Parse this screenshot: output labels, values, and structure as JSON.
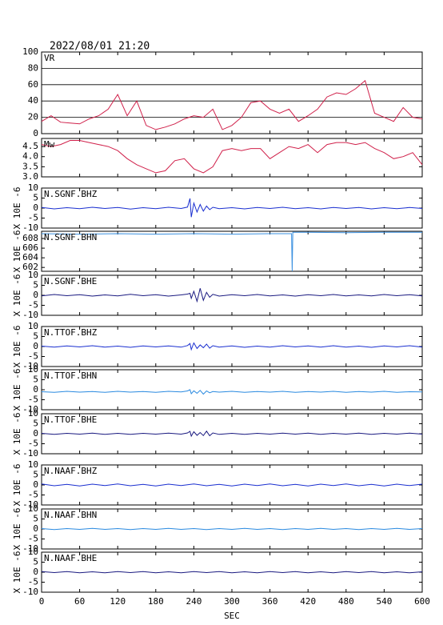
{
  "chart_data": [
    {
      "type": "line",
      "title": "2022/08/01 21:20",
      "panel_label": "VR",
      "color": "#d0204a",
      "grid": true,
      "ylim": [
        0,
        100
      ],
      "yticks": [
        0,
        20,
        40,
        60,
        80,
        100
      ],
      "x": [
        0,
        15,
        30,
        45,
        60,
        75,
        90,
        105,
        120,
        135,
        150,
        165,
        180,
        195,
        210,
        225,
        240,
        255,
        270,
        285,
        300,
        315,
        330,
        345,
        360,
        375,
        390,
        405,
        420,
        435,
        450,
        465,
        480,
        495,
        510,
        525,
        540,
        555,
        570,
        585,
        600
      ],
      "values": [
        15,
        22,
        14,
        13,
        12,
        18,
        22,
        30,
        48,
        22,
        40,
        10,
        5,
        8,
        12,
        18,
        22,
        20,
        30,
        5,
        10,
        20,
        38,
        40,
        30,
        25,
        30,
        15,
        22,
        30,
        45,
        50,
        48,
        55,
        65,
        25,
        20,
        15,
        32,
        20,
        18
      ]
    },
    {
      "type": "line",
      "panel_label": "Mw",
      "color": "#d0204a",
      "ylim": [
        3.0,
        4.9
      ],
      "yticks": [
        {
          "value": 3,
          "label": "3.0"
        },
        3.5,
        {
          "value": 4,
          "label": "4.0"
        },
        4.5
      ],
      "x": [
        0,
        15,
        30,
        45,
        60,
        75,
        90,
        105,
        120,
        135,
        150,
        165,
        180,
        195,
        210,
        225,
        240,
        255,
        270,
        285,
        300,
        315,
        330,
        345,
        360,
        375,
        390,
        405,
        420,
        435,
        450,
        465,
        480,
        495,
        510,
        525,
        540,
        555,
        570,
        585,
        600
      ],
      "values": [
        4.6,
        4.5,
        4.6,
        4.8,
        4.8,
        4.7,
        4.6,
        4.5,
        4.3,
        3.9,
        3.6,
        3.4,
        3.2,
        3.3,
        3.8,
        3.9,
        3.4,
        3.2,
        3.5,
        4.3,
        4.4,
        4.3,
        4.4,
        4.4,
        3.9,
        4.2,
        4.5,
        4.4,
        4.6,
        4.2,
        4.6,
        4.7,
        4.7,
        4.6,
        4.7,
        4.4,
        4.2,
        3.9,
        4.0,
        4.2,
        3.6
      ]
    },
    {
      "type": "line",
      "panel_label": "N.SGNF.BHZ",
      "ylabel": "X 10E -6",
      "color": "#1a2fd0",
      "ylim": [
        -10,
        10
      ],
      "yticks": [
        -10,
        -5,
        0,
        5,
        10
      ],
      "x": [
        0,
        20,
        40,
        60,
        80,
        100,
        120,
        140,
        160,
        180,
        200,
        220,
        230,
        234,
        236,
        240,
        245,
        250,
        255,
        260,
        265,
        270,
        280,
        300,
        320,
        340,
        360,
        380,
        400,
        420,
        440,
        460,
        480,
        500,
        520,
        540,
        560,
        580,
        600
      ],
      "values": [
        0.3,
        -0.4,
        0.2,
        -0.3,
        0.4,
        -0.2,
        0.3,
        -0.5,
        0.2,
        -0.3,
        0.4,
        -0.2,
        0.5,
        4.8,
        -4.5,
        2.5,
        -2,
        1.8,
        -1.5,
        1,
        -0.8,
        0.4,
        -0.3,
        0.2,
        -0.4,
        0.3,
        -0.2,
        0.4,
        -0.3,
        0.2,
        -0.4,
        0.3,
        -0.2,
        0.3,
        -0.4,
        0.2,
        -0.3,
        0.3,
        -0.2
      ]
    },
    {
      "type": "line",
      "panel_label": "N.SGNF.BHN",
      "ylabel": "X 10E -6",
      "color": "#3a90e0",
      "ylim": [
        601.2,
        609.5
      ],
      "yticks": [
        602,
        604,
        606,
        608
      ],
      "x": [
        0,
        60,
        120,
        180,
        240,
        300,
        360,
        394,
        395,
        396,
        420,
        480,
        540,
        600
      ],
      "values": [
        609.0,
        608.9,
        609.0,
        608.9,
        609.0,
        608.9,
        609.0,
        609.0,
        601.2,
        609.3,
        609.3,
        609.2,
        609.3,
        609.3
      ]
    },
    {
      "type": "line",
      "panel_label": "N.SGNF.BHE",
      "ylabel": "X 10E -6",
      "color": "#1a1a80",
      "ylim": [
        -10,
        10
      ],
      "yticks": [
        -10,
        -5,
        0,
        5,
        10
      ],
      "x": [
        0,
        20,
        40,
        60,
        80,
        100,
        120,
        140,
        160,
        180,
        200,
        220,
        230,
        234,
        236,
        240,
        245,
        250,
        255,
        260,
        265,
        270,
        280,
        300,
        320,
        340,
        360,
        380,
        400,
        420,
        440,
        460,
        480,
        500,
        520,
        540,
        560,
        580,
        600
      ],
      "values": [
        -0.3,
        0.4,
        -0.2,
        0.3,
        -0.4,
        0.2,
        -0.3,
        0.5,
        -0.2,
        0.3,
        -0.4,
        0.2,
        0.6,
        1,
        -1.5,
        2,
        -3,
        3.5,
        -2.5,
        1.5,
        -1,
        0.5,
        -0.4,
        0.3,
        -0.2,
        0.4,
        -0.3,
        0.2,
        -0.4,
        0.3,
        -0.2,
        0.4,
        -0.3,
        0.2,
        -0.3,
        0.4,
        -0.2,
        0.3,
        -0.3
      ]
    },
    {
      "type": "line",
      "panel_label": "N.TTOF.BHZ",
      "ylabel": "X 10E -6",
      "color": "#1a2fd0",
      "ylim": [
        -10,
        10
      ],
      "yticks": [
        -10,
        -5,
        0,
        5,
        10
      ],
      "x": [
        0,
        20,
        40,
        60,
        80,
        100,
        120,
        140,
        160,
        180,
        200,
        220,
        230,
        234,
        236,
        240,
        245,
        250,
        255,
        260,
        265,
        270,
        280,
        300,
        320,
        340,
        360,
        380,
        400,
        420,
        440,
        460,
        480,
        500,
        520,
        540,
        560,
        580,
        600
      ],
      "values": [
        0.2,
        -0.3,
        0.3,
        -0.2,
        0.4,
        -0.3,
        0.2,
        -0.4,
        0.3,
        -0.2,
        0.3,
        -0.3,
        0.5,
        1.5,
        -1.5,
        1.8,
        -1,
        0.8,
        -0.6,
        1.2,
        -0.8,
        0.4,
        -0.3,
        0.3,
        -0.4,
        0.2,
        -0.3,
        0.4,
        -0.2,
        0.3,
        -0.3,
        0.4,
        -0.3,
        0.2,
        -0.4,
        0.3,
        -0.2,
        0.4,
        -0.3
      ]
    },
    {
      "type": "line",
      "panel_label": "N.TTOF.BHN",
      "ylabel": "X 10E -6",
      "color": "#2a8ae0",
      "ylim": [
        -10,
        10
      ],
      "yticks": [
        -10,
        -5,
        0,
        5,
        10
      ],
      "x": [
        0,
        20,
        40,
        60,
        80,
        100,
        120,
        140,
        160,
        180,
        200,
        220,
        230,
        234,
        236,
        240,
        245,
        250,
        255,
        260,
        265,
        270,
        280,
        300,
        320,
        340,
        360,
        380,
        400,
        420,
        440,
        460,
        480,
        500,
        520,
        540,
        560,
        580,
        600
      ],
      "values": [
        -1,
        -1.3,
        -0.8,
        -1.2,
        -0.9,
        -1.3,
        -0.8,
        -1.2,
        -0.9,
        -1.3,
        -0.8,
        -1.1,
        -0.6,
        0,
        -2,
        -0.5,
        -1.8,
        -0.3,
        -2.2,
        -0.6,
        -1.5,
        -0.9,
        -1.2,
        -0.8,
        -1.3,
        -0.9,
        -1.2,
        -0.8,
        -1.3,
        -0.9,
        -1.2,
        -0.8,
        -1.3,
        -0.9,
        -1.2,
        -0.8,
        -1.3,
        -1.0,
        -1.1
      ]
    },
    {
      "type": "line",
      "panel_label": "N.TTOF.BHE",
      "ylabel": "X 10E -6",
      "color": "#1a1a80",
      "ylim": [
        -10,
        10
      ],
      "yticks": [
        -10,
        -5,
        0,
        5,
        10
      ],
      "x": [
        0,
        20,
        40,
        60,
        80,
        100,
        120,
        140,
        160,
        180,
        200,
        220,
        230,
        234,
        236,
        240,
        245,
        250,
        255,
        260,
        265,
        270,
        280,
        300,
        320,
        340,
        360,
        380,
        400,
        420,
        440,
        460,
        480,
        500,
        520,
        540,
        560,
        580,
        600
      ],
      "values": [
        0.2,
        -0.3,
        0.2,
        -0.2,
        0.3,
        -0.3,
        0.2,
        -0.3,
        0.2,
        -0.2,
        0.3,
        -0.2,
        0.4,
        1.2,
        -1.2,
        1,
        -0.8,
        0.6,
        -0.9,
        1.3,
        -1,
        0.4,
        -0.3,
        0.2,
        -0.3,
        0.2,
        -0.2,
        0.3,
        -0.2,
        0.3,
        -0.3,
        0.2,
        -0.2,
        0.3,
        -0.3,
        0.2,
        -0.2,
        0.3,
        -0.2
      ]
    },
    {
      "type": "line",
      "panel_label": "N.NAAF.BHZ",
      "ylabel": "X 10E -6",
      "color": "#1a2fd0",
      "ylim": [
        -10,
        10
      ],
      "yticks": [
        -10,
        -5,
        0,
        5,
        10
      ],
      "x": [
        0,
        20,
        40,
        60,
        80,
        100,
        120,
        140,
        160,
        180,
        200,
        220,
        240,
        260,
        280,
        300,
        320,
        340,
        360,
        380,
        400,
        420,
        440,
        460,
        480,
        500,
        520,
        540,
        560,
        580,
        600
      ],
      "values": [
        0.5,
        -0.4,
        0.3,
        -0.5,
        0.4,
        -0.3,
        0.5,
        -0.4,
        0.3,
        -0.5,
        0.4,
        -0.3,
        0.5,
        -0.4,
        0.3,
        -0.5,
        0.4,
        -0.3,
        0.5,
        -0.4,
        0.3,
        -0.5,
        0.4,
        -0.3,
        0.5,
        -0.4,
        0.3,
        -0.5,
        0.4,
        -0.3,
        0.4
      ]
    },
    {
      "type": "line",
      "panel_label": "N.NAAF.BHN",
      "ylabel": "X 10E -6",
      "color": "#2a8ae0",
      "ylim": [
        -10,
        10
      ],
      "yticks": [
        -10,
        -5,
        0,
        5,
        10
      ],
      "x": [
        0,
        20,
        40,
        60,
        80,
        100,
        120,
        140,
        160,
        180,
        200,
        220,
        240,
        260,
        280,
        300,
        320,
        340,
        360,
        380,
        400,
        420,
        440,
        460,
        480,
        500,
        520,
        540,
        560,
        580,
        600
      ],
      "values": [
        0.2,
        -0.3,
        0.2,
        -0.2,
        0.3,
        -0.2,
        0.2,
        -0.3,
        0.2,
        -0.2,
        0.3,
        -0.2,
        0.2,
        -0.3,
        0.2,
        -0.2,
        0.3,
        -0.2,
        0.2,
        -0.3,
        0.2,
        -0.2,
        0.3,
        -0.2,
        0.2,
        -0.3,
        0.2,
        -0.2,
        0.3,
        -0.2,
        0.2
      ]
    },
    {
      "type": "line",
      "panel_label": "N.NAAF.BHE",
      "ylabel": "X 10E -6",
      "color": "#1a1a80",
      "ylim": [
        -10,
        10
      ],
      "yticks": [
        -10,
        -5,
        0,
        5,
        10
      ],
      "x": [
        0,
        20,
        40,
        60,
        80,
        100,
        120,
        140,
        160,
        180,
        200,
        220,
        240,
        260,
        280,
        300,
        320,
        340,
        360,
        380,
        400,
        420,
        440,
        460,
        480,
        500,
        520,
        540,
        560,
        580,
        600
      ],
      "values": [
        0.3,
        -0.2,
        0.3,
        -0.3,
        0.2,
        -0.3,
        0.3,
        -0.2,
        0.3,
        -0.3,
        0.2,
        -0.3,
        0.3,
        -0.2,
        0.3,
        -0.3,
        0.2,
        -0.3,
        0.3,
        -0.2,
        0.3,
        -0.3,
        0.2,
        -0.3,
        0.3,
        -0.2,
        0.3,
        -0.3,
        0.2,
        -0.3,
        0.2
      ],
      "xlim": [
        0,
        600
      ],
      "xticks": [
        0,
        60,
        120,
        180,
        240,
        300,
        360,
        420,
        480,
        540,
        600
      ],
      "xlabel": "SEC"
    }
  ]
}
